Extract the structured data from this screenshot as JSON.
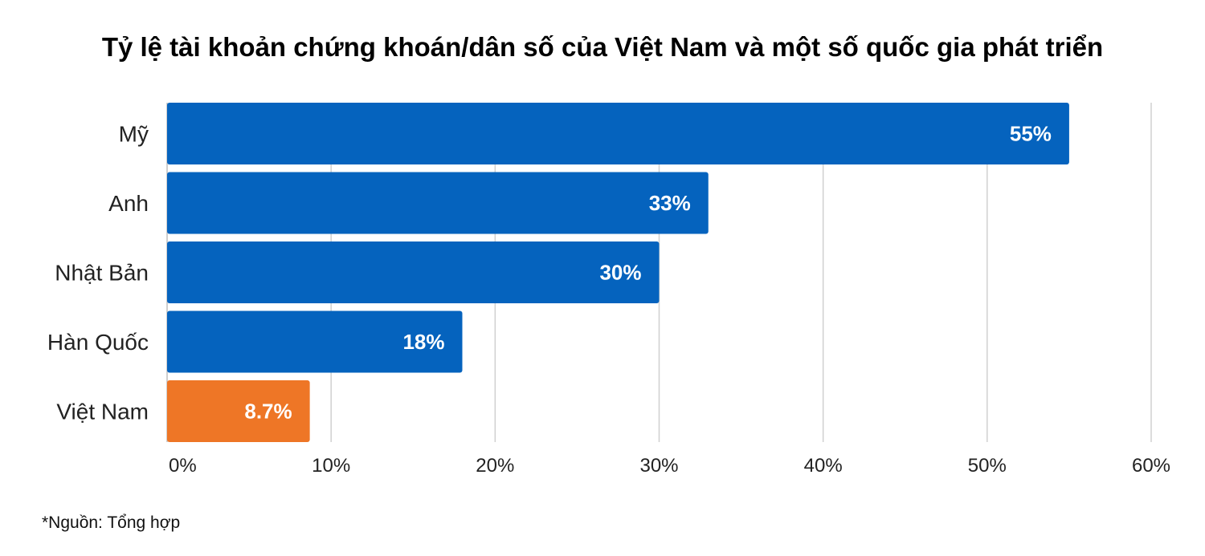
{
  "chart_data": {
    "type": "bar",
    "orientation": "horizontal",
    "title": "Tỷ lệ tài khoản chứng khoán/dân số của Việt Nam và một số quốc gia phát triển",
    "categories": [
      "Mỹ",
      "Anh",
      "Nhật Bản",
      "Hàn Quốc",
      "Việt Nam"
    ],
    "values": [
      55,
      33,
      30,
      18,
      8.7
    ],
    "value_labels": [
      "55%",
      "33%",
      "30%",
      "18%",
      "8.7%"
    ],
    "bar_colors": [
      "#0563BE",
      "#0563BE",
      "#0563BE",
      "#0563BE",
      "#EE7626"
    ],
    "xlim": [
      0,
      60
    ],
    "x_ticks": [
      0,
      10,
      20,
      30,
      40,
      50,
      60
    ],
    "x_tick_labels": [
      "0%",
      "10%",
      "20%",
      "30%",
      "40%",
      "50%",
      "60%"
    ],
    "grid": true,
    "legend": "none",
    "xlabel": "",
    "ylabel": ""
  },
  "source_note": "*Nguồn: Tổng hợp"
}
